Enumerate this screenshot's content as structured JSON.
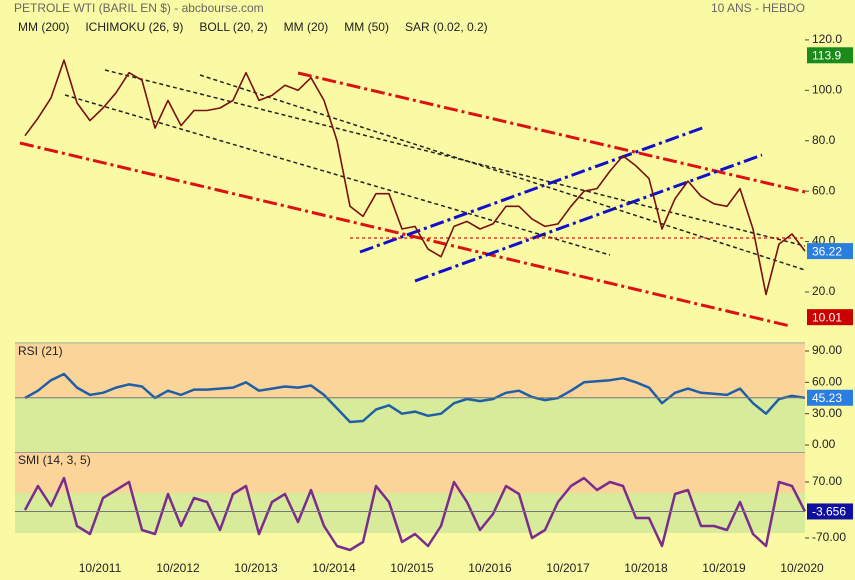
{
  "chart_data": [
    {
      "type": "line",
      "title": "PETROLE WTI (BARIL EN $) - abcbourse.com",
      "subtitle": "10 ANS - HEBDO",
      "legend": [
        {
          "name": "MM (200)",
          "color": "#0000cc"
        },
        {
          "name": "ICHIMOKU (26, 9)",
          "color": "#0000cc"
        },
        {
          "name": "BOLL (20, 2)",
          "color": "#555555"
        },
        {
          "name": "MM (20)",
          "color": "#008000"
        },
        {
          "name": "MM (50)",
          "color": "#cc0000"
        },
        {
          "name": "SAR (0.02, 0.2)",
          "color": "#cc0000"
        }
      ],
      "series": [
        {
          "color": "#7a1010",
          "values": [
            82,
            89,
            97,
            112,
            95,
            88,
            93,
            99,
            107,
            104,
            85,
            96,
            86,
            92,
            92,
            93,
            96,
            107,
            96,
            98,
            102,
            100,
            105,
            96,
            80,
            54,
            50,
            59,
            59,
            45,
            46,
            37,
            34,
            46,
            48,
            45,
            47,
            54,
            54,
            49,
            46,
            47,
            54,
            60,
            61,
            68,
            74,
            70,
            65,
            45,
            57,
            64,
            58,
            55,
            54,
            61,
            45,
            19,
            39,
            43,
            36.22
          ]
        }
      ],
      "ylim": [
        0.95,
        127.9
      ],
      "yticks": [
        {
          "value": 120,
          "label": "120.0"
        },
        {
          "value": 100,
          "label": "100.0"
        },
        {
          "value": 80,
          "label": "80.0"
        },
        {
          "value": 60,
          "label": "60.0"
        },
        {
          "value": 40,
          "label": "40.0"
        },
        {
          "value": 20,
          "label": "20.0"
        }
      ],
      "badges": [
        {
          "value": 113.9,
          "color": "#1a8a1a"
        },
        {
          "value": 36.22,
          "color": "#2a7de1"
        },
        {
          "value": 10.01,
          "color": "#cc0000"
        }
      ]
    },
    {
      "type": "line",
      "title": "RSI (21)",
      "series": [
        {
          "color": "#1f5fa8",
          "values": [
            45,
            52,
            62,
            68,
            55,
            48,
            50,
            55,
            58,
            56,
            45,
            52,
            48,
            53,
            53,
            54,
            55,
            60,
            52,
            54,
            56,
            55,
            57,
            48,
            35,
            22,
            23,
            34,
            38,
            30,
            32,
            28,
            30,
            40,
            44,
            42,
            44,
            50,
            52,
            46,
            43,
            45,
            52,
            60,
            61,
            62,
            64,
            60,
            55,
            40,
            50,
            54,
            50,
            49,
            48,
            54,
            40,
            30,
            44,
            47,
            45.23
          ]
        }
      ],
      "ylim": [
        -6.7,
        96.7
      ],
      "yticks": [
        {
          "value": 90,
          "label": "90.00"
        },
        {
          "value": 60,
          "label": "60.00"
        },
        {
          "value": 30,
          "label": "30.00"
        },
        {
          "value": 0,
          "label": "0.00"
        }
      ],
      "badges": [
        {
          "value": 45.23,
          "color": "#2a7de1"
        }
      ]
    },
    {
      "type": "line",
      "title": "SMI (14, 3, 5)",
      "categories": [
        null,
        null,
        null,
        null,
        null,
        null,
        "10/2011",
        null,
        null,
        null,
        null,
        null,
        "10/2012",
        null,
        null,
        null,
        null,
        null,
        "10/2013",
        null,
        null,
        null,
        null,
        null,
        "10/2014",
        null,
        null,
        null,
        null,
        null,
        "10/2015",
        null,
        null,
        null,
        null,
        null,
        "10/2016",
        null,
        null,
        null,
        null,
        null,
        "10/2017",
        null,
        null,
        null,
        null,
        null,
        "10/2018",
        null,
        null,
        null,
        null,
        null,
        "10/2019",
        null,
        null,
        null,
        null,
        null,
        "10/2020"
      ],
      "series": [
        {
          "color": "#7b2d8e",
          "values": [
            0,
            60,
            10,
            80,
            -40,
            -60,
            30,
            50,
            70,
            -50,
            -60,
            40,
            -40,
            30,
            20,
            -50,
            40,
            60,
            -60,
            20,
            40,
            -30,
            50,
            -40,
            -90,
            -100,
            -80,
            60,
            20,
            -80,
            -60,
            -90,
            -40,
            70,
            20,
            -50,
            -10,
            60,
            40,
            -70,
            -50,
            20,
            60,
            80,
            50,
            70,
            60,
            -20,
            -20,
            -90,
            40,
            50,
            -40,
            -40,
            -50,
            20,
            -60,
            -90,
            70,
            60,
            -3.656
          ]
        }
      ],
      "ylim": [
        -102.5,
        142.5
      ],
      "yticks": [
        {
          "value": 70,
          "label": "70.00"
        },
        {
          "value": -70,
          "label": "-70.00"
        }
      ],
      "badges": [
        {
          "value": -3.656,
          "color": "#1010a0"
        }
      ]
    }
  ]
}
